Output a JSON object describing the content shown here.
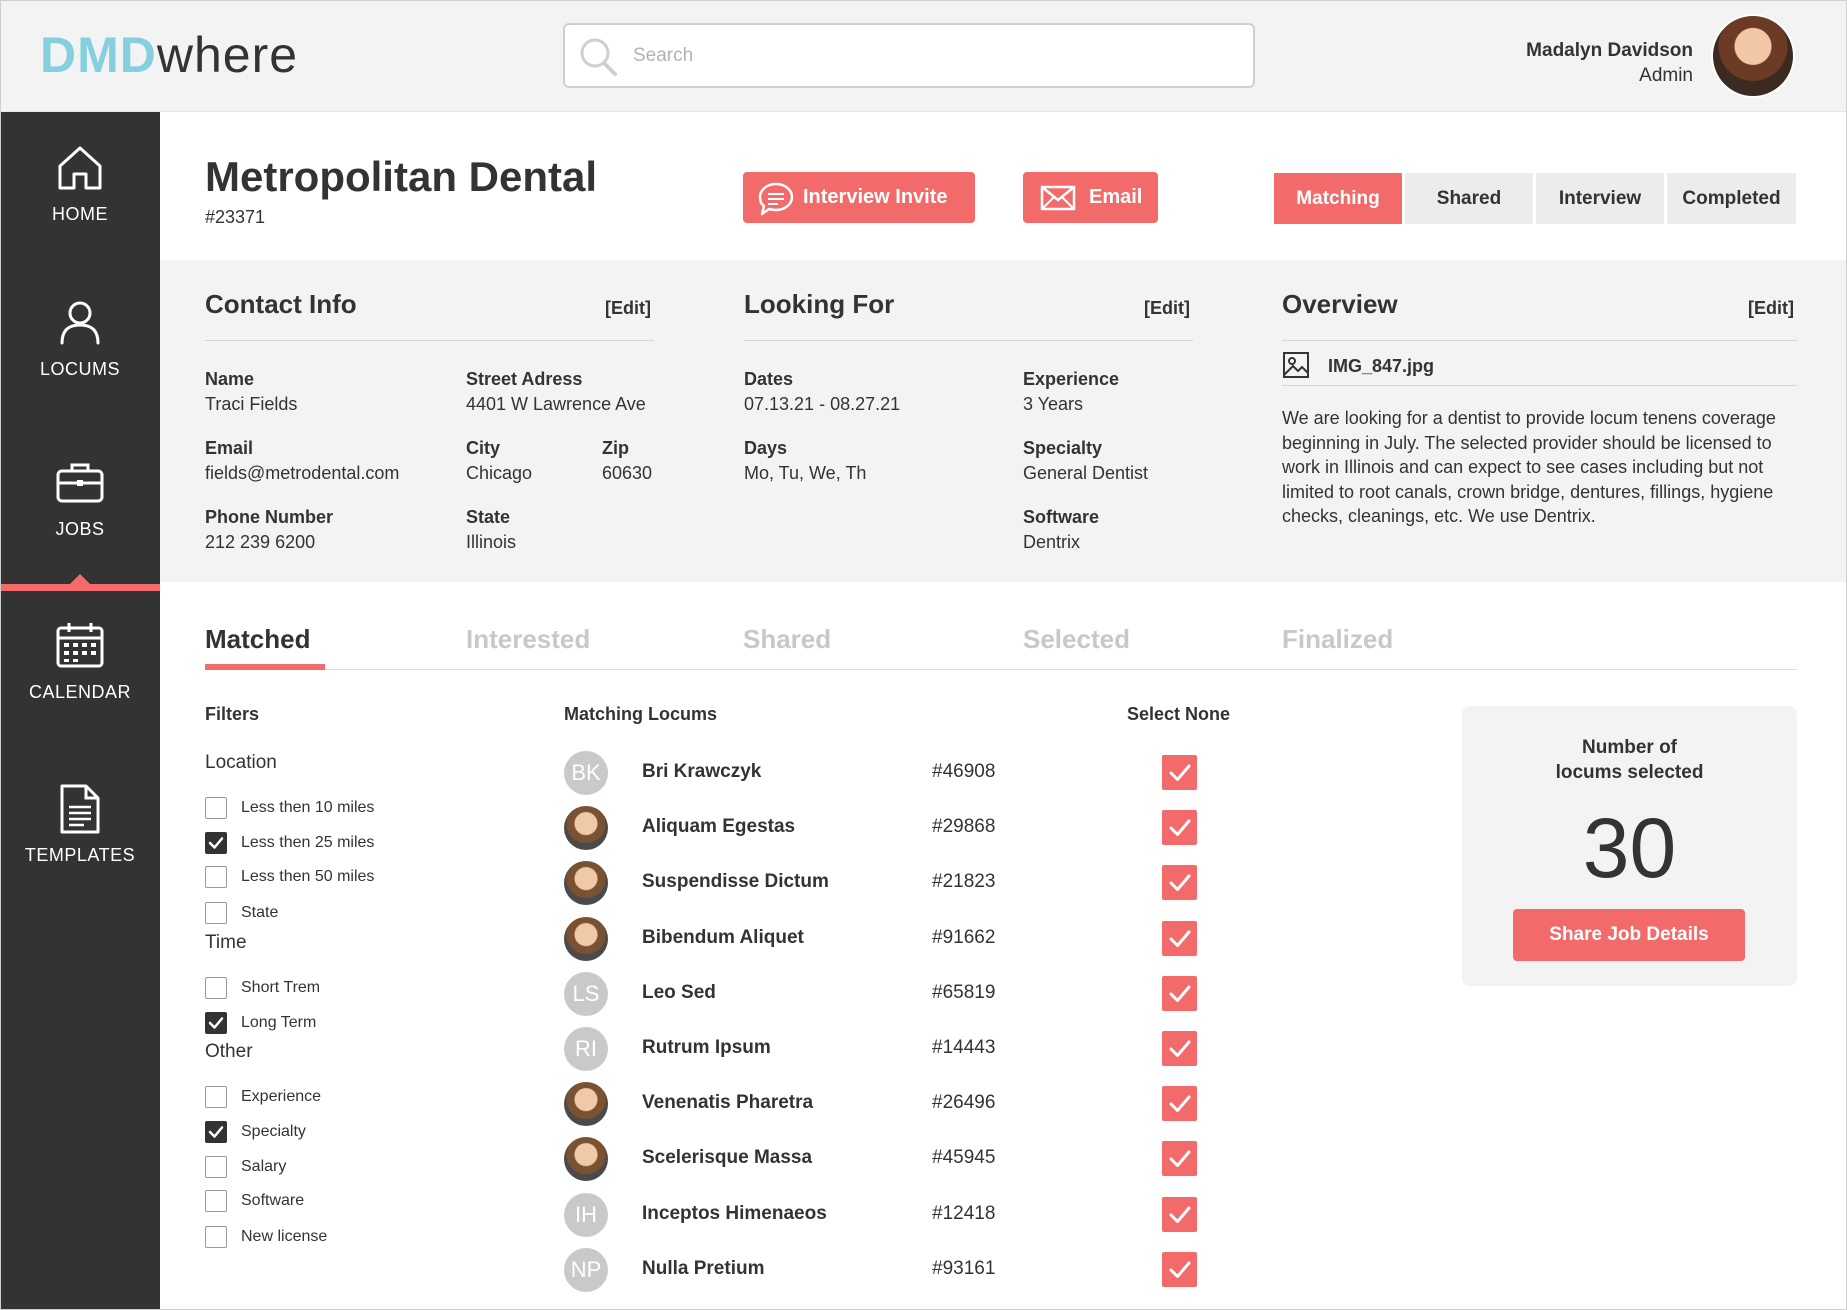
{
  "app": {
    "logo_part1": "DMD",
    "logo_part2": "where",
    "search_placeholder": "Search",
    "accent_color": "#f26a6a",
    "brand_color": "#86cfdf"
  },
  "user": {
    "name": "Madalyn Davidson",
    "role": "Admin"
  },
  "sidebar": {
    "items": [
      {
        "label": "HOME",
        "icon": "home-icon"
      },
      {
        "label": "LOCUMS",
        "icon": "user-icon"
      },
      {
        "label": "JOBS",
        "icon": "briefcase-icon",
        "active": true
      },
      {
        "label": "CALENDAR",
        "icon": "calendar-icon"
      },
      {
        "label": "TEMPLATES",
        "icon": "document-icon"
      }
    ]
  },
  "job": {
    "title": "Metropolitan Dental",
    "id": "#23371",
    "interview_invite_label": "Interview Invite",
    "email_label": "Email",
    "status_tabs": [
      "Matching",
      "Shared",
      "Interview",
      "Completed"
    ],
    "active_status": "Matching"
  },
  "contact": {
    "title": "Contact Info",
    "edit": "[Edit]",
    "name_label": "Name",
    "name": "Traci Fields",
    "street_label": "Street Adress",
    "street": "4401 W Lawrence Ave",
    "email_label": "Email",
    "email": "fields@metrodental.com",
    "city_label": "City",
    "city": "Chicago",
    "zip_label": "Zip",
    "zip": "60630",
    "phone_label": "Phone Number",
    "phone": "212 239 6200",
    "state_label": "State",
    "state": "Illinois"
  },
  "looking_for": {
    "title": "Looking For",
    "edit": "[Edit]",
    "dates_label": "Dates",
    "dates": "07.13.21 - 08.27.21",
    "days_label": "Days",
    "days": "Mo, Tu, We, Th",
    "experience_label": "Experience",
    "experience": "3 Years",
    "specialty_label": "Specialty",
    "specialty": "General Dentist",
    "software_label": "Software",
    "software": "Dentrix"
  },
  "overview": {
    "title": "Overview",
    "edit": "[Edit]",
    "attachment": "IMG_847.jpg",
    "text": "We are looking for a dentist to provide locum tenens coverage beginning in July. The selected provider should be licensed to work in Illinois and can expect to see cases including but not limited to root canals, crown bridge, dentures, fillings, hygiene checks, cleanings, etc. We use Dentrix."
  },
  "pipeline_tabs": [
    "Matched",
    "Interested",
    "Shared",
    "Selected",
    "Finalized"
  ],
  "active_pipeline_tab": "Matched",
  "filters": {
    "title": "Filters",
    "groups": [
      {
        "name": "Location",
        "options": [
          {
            "label": "Less then 10 miles",
            "checked": false
          },
          {
            "label": "Less then 25 miles",
            "checked": true
          },
          {
            "label": "Less then 50 miles",
            "checked": false
          },
          {
            "label": "State",
            "checked": false
          }
        ]
      },
      {
        "name": "Time",
        "options": [
          {
            "label": "Short Trem",
            "checked": false
          },
          {
            "label": "Long Term",
            "checked": true
          }
        ]
      },
      {
        "name": "Other",
        "options": [
          {
            "label": "Experience",
            "checked": false
          },
          {
            "label": "Specialty",
            "checked": true
          },
          {
            "label": "Salary",
            "checked": false
          },
          {
            "label": "Software",
            "checked": false
          },
          {
            "label": "New license",
            "checked": false
          }
        ]
      }
    ]
  },
  "locums": {
    "title": "Matching Locums",
    "select_none": "Select None",
    "rows": [
      {
        "initials": "BK",
        "name": "Bri Krawczyk",
        "id": "#46908",
        "photo": false,
        "selected": true
      },
      {
        "initials": "",
        "name": "Aliquam Egestas",
        "id": "#29868",
        "photo": true,
        "selected": true
      },
      {
        "initials": "",
        "name": "Suspendisse Dictum",
        "id": "#21823",
        "photo": true,
        "selected": true
      },
      {
        "initials": "",
        "name": "Bibendum Aliquet",
        "id": "#91662",
        "photo": true,
        "selected": true
      },
      {
        "initials": "LS",
        "name": "Leo Sed",
        "id": "#65819",
        "photo": false,
        "selected": true
      },
      {
        "initials": "RI",
        "name": "Rutrum Ipsum",
        "id": "#14443",
        "photo": false,
        "selected": true
      },
      {
        "initials": "",
        "name": "Venenatis Pharetra",
        "id": "#26496",
        "photo": true,
        "selected": true
      },
      {
        "initials": "",
        "name": "Scelerisque Massa",
        "id": "#45945",
        "photo": true,
        "selected": true
      },
      {
        "initials": "IH",
        "name": "Inceptos Himenaeos",
        "id": "#12418",
        "photo": false,
        "selected": true
      },
      {
        "initials": "NP",
        "name": "Nulla Pretium",
        "id": "#93161",
        "photo": false,
        "selected": true
      }
    ]
  },
  "selection": {
    "title_line1": "Number of",
    "title_line2": "locums selected",
    "count": "30",
    "share_label": "Share Job Details"
  }
}
